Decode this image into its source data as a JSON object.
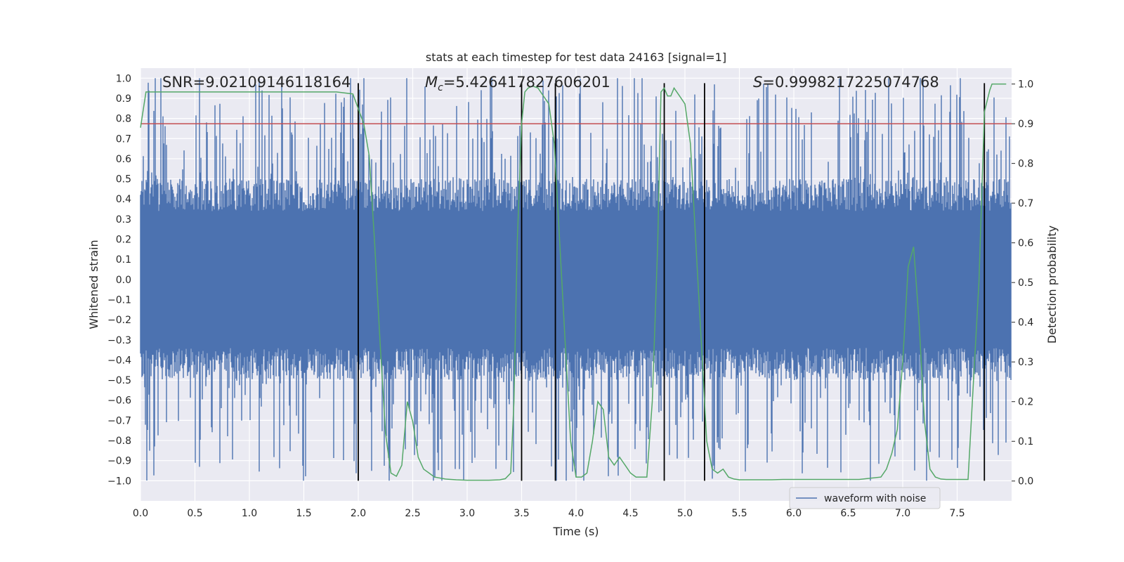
{
  "chart_data": {
    "type": "line",
    "title": "stats at each timestep for test data 24163 [signal=1]",
    "xlabel": "Time (s)",
    "ylabel": "Whitened strain",
    "y2label": "Detection probability",
    "xlim": [
      0.0,
      8.0
    ],
    "ylim": [
      -1.1,
      1.05
    ],
    "y2lim": [
      -0.05,
      1.04
    ],
    "xticks": [
      0.0,
      0.5,
      1.0,
      1.5,
      2.0,
      2.5,
      3.0,
      3.5,
      4.0,
      4.5,
      5.0,
      5.5,
      6.0,
      6.5,
      7.0,
      7.5
    ],
    "xtick_labels": [
      "0.0",
      "0.5",
      "1.0",
      "1.5",
      "2.0",
      "2.5",
      "3.0",
      "3.5",
      "4.0",
      "4.5",
      "5.0",
      "5.5",
      "6.0",
      "6.5",
      "7.0",
      "7.5"
    ],
    "yticks": [
      1.0,
      0.9,
      0.8,
      0.7,
      0.6,
      0.5,
      0.4,
      0.3,
      0.2,
      0.1,
      0.0,
      -0.1,
      -0.2,
      -0.3,
      -0.4,
      -0.5,
      -0.6,
      -0.7,
      -0.8,
      -0.9,
      -1.0
    ],
    "ytick_labels": [
      "1.0",
      "0.9",
      "0.8",
      "0.7",
      "0.6",
      "0.5",
      "0.4",
      "0.3",
      "0.2",
      "0.1",
      "0.0",
      "−0.1",
      "−0.2",
      "−0.3",
      "−0.4",
      "−0.5",
      "−0.6",
      "−0.7",
      "−0.8",
      "−0.9",
      "−1.0"
    ],
    "y2ticks": [
      1.0,
      0.9,
      0.8,
      0.7,
      0.6,
      0.5,
      0.4,
      0.3,
      0.2,
      0.1,
      0.0
    ],
    "y2tick_labels": [
      "1.0",
      "0.9",
      "0.8",
      "0.7",
      "0.6",
      "0.5",
      "0.4",
      "0.3",
      "0.2",
      "0.1",
      "0.0"
    ],
    "annotations": {
      "snr": "SNR=9.02109146118164",
      "mc_symbol": "M",
      "mc_sub": "c",
      "mc_value": "=5.426417827606201",
      "s_symbol": "S",
      "s_value": "=0.9998217225074768"
    },
    "legend": {
      "label": "waveform with noise",
      "location": "lower-right"
    },
    "series": [
      {
        "name": "waveform with noise",
        "axis": "left",
        "color": "#4c72b0",
        "envelope_typical": 0.4,
        "envelope_max": 1.0
      },
      {
        "name": "detection probability",
        "axis": "right",
        "color": "#55a868",
        "x": [
          0.0,
          0.05,
          0.1,
          0.2,
          0.4,
          0.6,
          0.8,
          1.0,
          1.2,
          1.4,
          1.6,
          1.8,
          1.95,
          2.05,
          2.1,
          2.15,
          2.2,
          2.25,
          2.3,
          2.35,
          2.4,
          2.45,
          2.5,
          2.55,
          2.6,
          2.65,
          2.7,
          2.8,
          2.9,
          3.0,
          3.1,
          3.2,
          3.3,
          3.35,
          3.4,
          3.43,
          3.46,
          3.5,
          3.53,
          3.56,
          3.6,
          3.65,
          3.7,
          3.75,
          3.8,
          3.85,
          3.9,
          3.95,
          4.0,
          4.05,
          4.1,
          4.15,
          4.2,
          4.25,
          4.3,
          4.35,
          4.4,
          4.45,
          4.5,
          4.55,
          4.6,
          4.65,
          4.7,
          4.75,
          4.78,
          4.81,
          4.84,
          4.87,
          4.9,
          4.95,
          5.0,
          5.05,
          5.1,
          5.15,
          5.2,
          5.25,
          5.3,
          5.35,
          5.4,
          5.45,
          5.5,
          5.55,
          5.6,
          5.65,
          5.7,
          5.75,
          5.8,
          5.9,
          6.0,
          6.1,
          6.2,
          6.4,
          6.6,
          6.8,
          6.85,
          6.9,
          6.95,
          7.0,
          7.05,
          7.1,
          7.15,
          7.2,
          7.25,
          7.3,
          7.35,
          7.4,
          7.45,
          7.5,
          7.6,
          7.7,
          7.75,
          7.8,
          7.82,
          7.85,
          7.9,
          7.95
        ],
        "values": [
          0.89,
          0.98,
          0.98,
          0.98,
          0.98,
          0.98,
          0.98,
          0.98,
          0.98,
          0.98,
          0.98,
          0.98,
          0.975,
          0.9,
          0.82,
          0.6,
          0.35,
          0.12,
          0.02,
          0.012,
          0.04,
          0.2,
          0.15,
          0.06,
          0.03,
          0.02,
          0.01,
          0.005,
          0.003,
          0.002,
          0.002,
          0.002,
          0.003,
          0.006,
          0.02,
          0.2,
          0.6,
          0.9,
          0.98,
          0.99,
          0.995,
          0.99,
          0.97,
          0.95,
          0.85,
          0.6,
          0.35,
          0.1,
          0.01,
          0.01,
          0.02,
          0.1,
          0.2,
          0.18,
          0.06,
          0.04,
          0.06,
          0.04,
          0.02,
          0.01,
          0.01,
          0.01,
          0.2,
          0.6,
          0.98,
          0.99,
          0.97,
          0.97,
          0.99,
          0.97,
          0.95,
          0.85,
          0.6,
          0.35,
          0.1,
          0.03,
          0.02,
          0.03,
          0.01,
          0.005,
          0.003,
          0.003,
          0.003,
          0.003,
          0.003,
          0.003,
          0.003,
          0.004,
          0.004,
          0.004,
          0.004,
          0.004,
          0.004,
          0.01,
          0.03,
          0.07,
          0.13,
          0.3,
          0.54,
          0.59,
          0.4,
          0.15,
          0.03,
          0.01,
          0.005,
          0.004,
          0.004,
          0.004,
          0.004,
          0.5,
          0.93,
          0.985,
          1.0,
          1.0,
          1.0,
          1.0
        ],
        "line_width": 1.5
      }
    ],
    "threshold": {
      "axis": "right",
      "value": 0.9,
      "color": "#c44e52"
    },
    "vertical_markers": {
      "x": [
        2.0,
        3.5,
        3.81,
        4.81,
        5.18,
        7.75
      ],
      "y_range": [
        -1.0,
        1.0
      ],
      "color": "#000000"
    },
    "grid": true,
    "background": "#eaeaf2"
  }
}
